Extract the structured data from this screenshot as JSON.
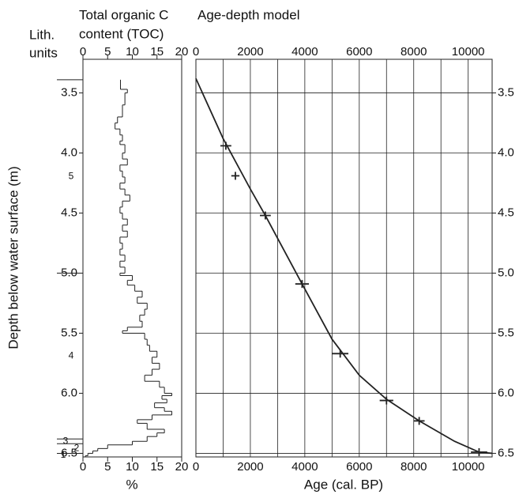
{
  "chart_data": [
    {
      "type": "lithology",
      "title": "Lith.",
      "subtitle": "units",
      "ylabel": "Depth below water surface (m)",
      "ylim": [
        3.22,
        6.53
      ],
      "yticks": [
        3.5,
        {
          "value": 4,
          "label": "4.0"
        },
        4.5,
        {
          "value": 5,
          "label": "5.0"
        },
        5.5,
        {
          "value": 6,
          "label": "6.0"
        },
        6.5
      ],
      "boundaries": [
        3.39,
        5.0,
        6.38,
        6.42,
        6.5
      ],
      "units": [
        "5",
        "4",
        "3",
        "2",
        "1"
      ]
    },
    {
      "type": "step",
      "title": "Total organic C",
      "subtitle": "content (TOC)",
      "xlabel": "%",
      "xlim": [
        0,
        20
      ],
      "xticks": [
        0,
        5,
        10,
        15,
        20
      ],
      "ylim": [
        3.22,
        6.53
      ],
      "color": "#000000",
      "depth": [
        3.39,
        3.47,
        3.5,
        3.6,
        3.7,
        3.75,
        3.8,
        3.85,
        3.9,
        3.93,
        4.0,
        4.05,
        4.1,
        4.15,
        4.2,
        4.25,
        4.3,
        4.35,
        4.4,
        4.45,
        4.5,
        4.55,
        4.6,
        4.65,
        4.7,
        4.75,
        4.8,
        4.85,
        4.9,
        4.95,
        5.0,
        5.02,
        5.06,
        5.1,
        5.15,
        5.2,
        5.25,
        5.3,
        5.35,
        5.4,
        5.45,
        5.48,
        5.5,
        5.55,
        5.6,
        5.65,
        5.7,
        5.75,
        5.8,
        5.85,
        5.9,
        5.95,
        6.0,
        6.02,
        6.05,
        6.08,
        6.12,
        6.15,
        6.18,
        6.22,
        6.25,
        6.3,
        6.33,
        6.36,
        6.4,
        6.43,
        6.46,
        6.48,
        6.5,
        6.52
      ],
      "values": [
        7.6,
        9,
        8.5,
        8,
        7,
        6.5,
        7.5,
        8,
        7.5,
        8.5,
        8,
        9,
        7.5,
        8,
        8.5,
        7.5,
        8.5,
        9.5,
        8,
        7.5,
        8,
        9,
        8,
        9,
        7.5,
        8,
        7.5,
        8.5,
        7.5,
        8.5,
        7.5,
        10,
        9,
        10.5,
        12,
        11,
        13,
        12.5,
        11.5,
        12,
        9,
        8,
        12.5,
        13,
        13.5,
        15,
        14,
        15.5,
        14,
        12.5,
        15.5,
        16.5,
        18,
        16,
        17,
        14.5,
        16.5,
        18,
        14,
        11,
        13,
        16.5,
        15,
        13,
        10,
        5,
        3,
        2,
        1,
        0.5
      ]
    },
    {
      "type": "age-depth",
      "title": "Age-depth model",
      "xlabel": "Age (cal. BP)",
      "xlim": [
        0,
        10880
      ],
      "xticks": [
        0,
        2000,
        4000,
        6000,
        8000,
        10000
      ],
      "xgrid": [
        1000,
        3000,
        5000,
        7000,
        9000
      ],
      "ylim": [
        3.22,
        6.53
      ],
      "yticks": [
        3.5,
        {
          "value": 4,
          "label": "4.0"
        },
        4.5,
        {
          "value": 5,
          "label": "5.0"
        },
        5.5,
        {
          "value": 6,
          "label": "6.0"
        },
        6.5
      ],
      "grid": true,
      "color": "#000000",
      "dates": {
        "age": [
          1100,
          1450,
          2550,
          3900,
          5300,
          7000,
          8200,
          10400
        ],
        "error": [
          200,
          150,
          200,
          250,
          300,
          250,
          200,
          300
        ],
        "depth": [
          3.94,
          4.19,
          4.52,
          5.09,
          5.67,
          6.06,
          6.23,
          6.49
        ]
      },
      "curve": {
        "x": [
          0,
          1000,
          2000,
          2550,
          3900,
          5000,
          6000,
          7000,
          8200,
          9500,
          10400,
          10880
        ],
        "y": [
          3.38,
          3.88,
          4.3,
          4.52,
          5.09,
          5.55,
          5.85,
          6.05,
          6.23,
          6.4,
          6.49,
          6.5
        ]
      }
    }
  ]
}
